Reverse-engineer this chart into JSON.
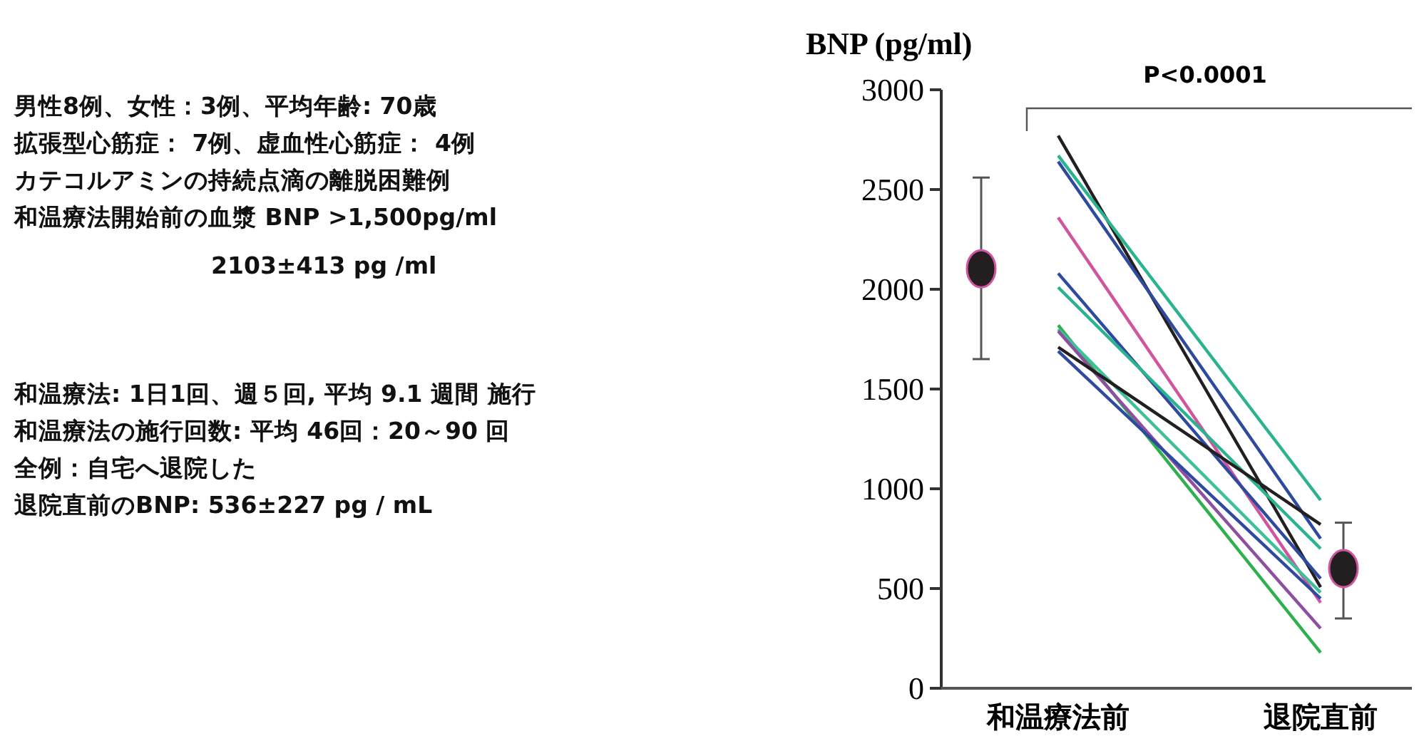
{
  "chart_data": {
    "type": "line",
    "ylabel": "BNP (pg/ml)",
    "categories": [
      "和温療法前",
      "退院直前"
    ],
    "ylim": [
      0,
      3000
    ],
    "yticks": [
      0,
      500,
      1000,
      1500,
      2000,
      2500,
      3000
    ],
    "grid": false,
    "marker": "none",
    "line_style": "solid",
    "series": [
      {
        "color": "#231f20",
        "values": [
          2770,
          507
        ]
      },
      {
        "color": "#2bb28e",
        "values": [
          2670,
          943
        ]
      },
      {
        "color": "#2e4a9e",
        "values": [
          2640,
          750
        ]
      },
      {
        "color": "#d0559f",
        "values": [
          2360,
          429
        ]
      },
      {
        "color": "#2e4a9e",
        "values": [
          2080,
          550
        ]
      },
      {
        "color": "#2bb28e",
        "values": [
          2010,
          700
        ]
      },
      {
        "color": "#2fb04f",
        "values": [
          1820,
          179
        ]
      },
      {
        "color": "#3fbf9a",
        "values": [
          1800,
          480
        ]
      },
      {
        "color": "#8e4fa0",
        "values": [
          1790,
          300
        ]
      },
      {
        "color": "#231f20",
        "values": [
          1710,
          821
        ]
      },
      {
        "color": "#2e4a9e",
        "values": [
          1690,
          450
        ]
      },
      {
        "type": "scatter",
        "marker": "circle",
        "color": "#231f20",
        "values": [
          2103,
          600
        ],
        "errors": [
          [
            1650,
            2560
          ],
          [
            350,
            830
          ]
        ]
      }
    ],
    "annotations": [
      "男性8例、女性：3例、平均年齢: 70歳",
      "拡張型心筋症： 7例、虚血性心筋症： 4例",
      "カテコルアミンの持続点滴の離脱困難例",
      "和温療法開始前の血漿 BNP >1,500pg/ml",
      "2103±413 pg /ml",
      "和温療法: 1日1回、週５回, 平均 9.1 週間 施行",
      "和温療法の施行回数: 平均 46回：20～90 回",
      "全例：自宅へ退院した",
      "退院直前のBNP: 536±227 pg / mL",
      "P<0.0001"
    ]
  }
}
